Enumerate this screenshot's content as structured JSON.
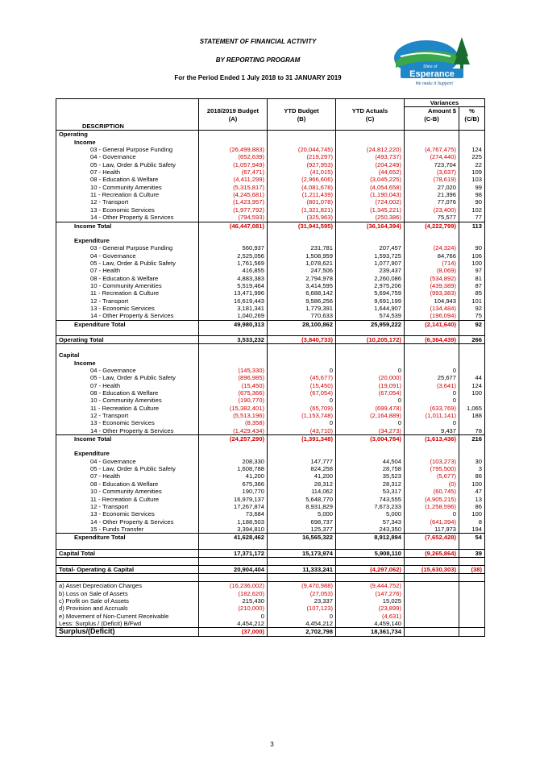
{
  "header": {
    "title": "STATEMENT OF FINANCIAL ACTIVITY",
    "subtitle": "BY REPORTING PROGRAM",
    "period": "For the Period Ended 1 July 2018 to 31 JANUARY 2019"
  },
  "logo": {
    "icon": "esperance-shire-logo",
    "small_text": "Shire of",
    "name": "Esperance",
    "tagline": "We make it happen!"
  },
  "columns": {
    "variances": "Variances",
    "description": "DESCRIPTION",
    "budget": "2018/2019 Budget",
    "budget_sub": "(A)",
    "ytd_budget": "YTD Budget",
    "ytd_budget_sub": "(B)",
    "ytd_actuals": "YTD Actuals",
    "ytd_actuals_sub": "(C)",
    "amount": "Amount $",
    "amount_sub": "(C-B)",
    "pct": "%",
    "pct_sub": "(C/B)"
  },
  "rows": [
    {
      "label": "Operating",
      "style": "section",
      "vals": [
        "",
        "",
        "",
        "",
        ""
      ]
    },
    {
      "label": "Income",
      "style": "group",
      "vals": [
        "",
        "",
        "",
        "",
        ""
      ]
    },
    {
      "label": "03 - General Purpose Funding",
      "style": "item",
      "vals": [
        "(26,499,883)",
        "(20,044,745)",
        "(24,812,220)",
        "(4,767,475)",
        "124"
      ]
    },
    {
      "label": "04 - Governance",
      "style": "item",
      "vals": [
        "(652,639)",
        "(219,297)",
        "(493,737)",
        "(274,440)",
        "225"
      ]
    },
    {
      "label": "05 - Law, Order & Public Safety",
      "style": "item",
      "vals": [
        "(1,057,949)",
        "(927,953)",
        "(204,249)",
        "723,704",
        "22"
      ]
    },
    {
      "label": "07 - Health",
      "style": "item",
      "vals": [
        "(67,471)",
        "(41,015)",
        "(44,652)",
        "(3,637)",
        "109"
      ]
    },
    {
      "label": "08 - Education & Welfare",
      "style": "item",
      "vals": [
        "(4,411,299)",
        "(2,966,606)",
        "(3,045,225)",
        "(78,619)",
        "103"
      ]
    },
    {
      "label": "10 - Community Amenities",
      "style": "item",
      "vals": [
        "(5,315,817)",
        "(4,081,678)",
        "(4,054,658)",
        "27,020",
        "99"
      ]
    },
    {
      "label": "11 - Recreation & Culture",
      "style": "item",
      "vals": [
        "(4,245,681)",
        "(1,211,439)",
        "(1,190,043)",
        "21,396",
        "98"
      ]
    },
    {
      "label": "12 - Transport",
      "style": "item",
      "vals": [
        "(1,423,957)",
        "(801,078)",
        "(724,002)",
        "77,076",
        "90"
      ]
    },
    {
      "label": "13 - Economic Services",
      "style": "item",
      "vals": [
        "(1,977,792)",
        "(1,321,821)",
        "(1,345,221)",
        "(23,400)",
        "102"
      ]
    },
    {
      "label": "14 - Other Property & Services",
      "style": "item",
      "vals": [
        "(794,593)",
        "(325,963)",
        "(250,386)",
        "75,577",
        "77"
      ]
    },
    {
      "label": "Income Total",
      "style": "total",
      "vals": [
        "(46,447,081)",
        "(31,941,595)",
        "(36,164,394)",
        "(4,222,799)",
        "113"
      ]
    },
    {
      "label": "",
      "style": "blank",
      "vals": [
        "",
        "",
        "",
        "",
        ""
      ]
    },
    {
      "label": "Expenditure",
      "style": "group",
      "vals": [
        "",
        "",
        "",
        "",
        ""
      ]
    },
    {
      "label": "03 - General Purpose Funding",
      "style": "item",
      "vals": [
        "560,937",
        "231,781",
        "207,457",
        "(24,324)",
        "90"
      ]
    },
    {
      "label": "04 - Governance",
      "style": "item",
      "vals": [
        "2,525,056",
        "1,508,959",
        "1,593,725",
        "84,766",
        "106"
      ]
    },
    {
      "label": "05 - Law, Order & Public Safety",
      "style": "item",
      "vals": [
        "1,761,569",
        "1,078,621",
        "1,077,907",
        "(714)",
        "100"
      ]
    },
    {
      "label": "07 - Health",
      "style": "item",
      "vals": [
        "416,855",
        "247,506",
        "239,437",
        "(8,069)",
        "97"
      ]
    },
    {
      "label": "08 - Education & Welfare",
      "style": "item",
      "vals": [
        "4,883,383",
        "2,794,978",
        "2,260,086",
        "(534,892)",
        "81"
      ]
    },
    {
      "label": "10 - Community Amenities",
      "style": "item",
      "vals": [
        "5,519,464",
        "3,414,595",
        "2,975,206",
        "(439,389)",
        "87"
      ]
    },
    {
      "label": "11 - Recreation & Culture",
      "style": "item",
      "vals": [
        "13,471,996",
        "6,688,142",
        "5,694,759",
        "(993,383)",
        "85"
      ]
    },
    {
      "label": "12 - Transport",
      "style": "item",
      "vals": [
        "16,619,443",
        "9,586,256",
        "9,691,199",
        "104,943",
        "101"
      ]
    },
    {
      "label": "13 - Economic Services",
      "style": "item",
      "vals": [
        "3,181,341",
        "1,779,391",
        "1,644,907",
        "(134,484)",
        "92"
      ]
    },
    {
      "label": "14 - Other Property & Services",
      "style": "item",
      "vals": [
        "1,040,269",
        "770,633",
        "574,539",
        "(196,094)",
        "75"
      ]
    },
    {
      "label": "Expenditure Total",
      "style": "total",
      "vals": [
        "49,980,313",
        "28,100,862",
        "25,959,222",
        "(2,141,640)",
        "92"
      ]
    },
    {
      "label": "",
      "style": "blank",
      "vals": [
        "",
        "",
        "",
        "",
        ""
      ]
    },
    {
      "label": "Operating Total",
      "style": "grand",
      "vals": [
        "3,533,232",
        "(3,840,733)",
        "(10,205,172)",
        "(6,364,439)",
        "266"
      ]
    },
    {
      "label": "",
      "style": "blank",
      "vals": [
        "",
        "",
        "",
        "",
        ""
      ]
    },
    {
      "label": "Capital",
      "style": "section",
      "vals": [
        "",
        "",
        "",
        "",
        ""
      ]
    },
    {
      "label": "Income",
      "style": "group",
      "vals": [
        "",
        "",
        "",
        "",
        ""
      ]
    },
    {
      "label": "04 - Governance",
      "style": "item",
      "vals": [
        "(145,330)",
        "0",
        "0",
        "0",
        ""
      ]
    },
    {
      "label": "05 - Law, Order & Public Safety",
      "style": "item",
      "vals": [
        "(896,985)",
        "(45,677)",
        "(20,000)",
        "25,677",
        "44"
      ]
    },
    {
      "label": "07 - Health",
      "style": "item",
      "vals": [
        "(15,450)",
        "(15,450)",
        "(19,091)",
        "(3,641)",
        "124"
      ]
    },
    {
      "label": "08 - Education & Welfare",
      "style": "item",
      "vals": [
        "(675,366)",
        "(67,054)",
        "(67,054)",
        "0",
        "100"
      ]
    },
    {
      "label": "10 - Community Amenities",
      "style": "item",
      "vals": [
        "(190,770)",
        "0",
        "0",
        "0",
        ""
      ]
    },
    {
      "label": "11 - Recreation & Culture",
      "style": "item",
      "vals": [
        "(15,382,401)",
        "(65,709)",
        "(699,478)",
        "(633,769)",
        "1,065"
      ]
    },
    {
      "label": "12 - Transport",
      "style": "item",
      "vals": [
        "(5,513,196)",
        "(1,153,748)",
        "(2,164,889)",
        "(1,011,141)",
        "188"
      ]
    },
    {
      "label": "13 - Economic Services",
      "style": "item",
      "vals": [
        "(8,358)",
        "0",
        "0",
        "0",
        ""
      ]
    },
    {
      "label": "14 - Other Property & Services",
      "style": "item",
      "vals": [
        "(1,429,434)",
        "(43,710)",
        "(34,273)",
        "9,437",
        "78"
      ]
    },
    {
      "label": "Income Total",
      "style": "total",
      "vals": [
        "(24,257,290)",
        "(1,391,348)",
        "(3,004,784)",
        "(1,613,436)",
        "216"
      ]
    },
    {
      "label": "",
      "style": "blank",
      "vals": [
        "",
        "",
        "",
        "",
        ""
      ]
    },
    {
      "label": "Expenditure",
      "style": "group",
      "vals": [
        "",
        "",
        "",
        "",
        ""
      ]
    },
    {
      "label": "04 - Governance",
      "style": "item",
      "vals": [
        "208,330",
        "147,777",
        "44,504",
        "(103,273)",
        "30"
      ]
    },
    {
      "label": "05 - Law, Order & Public Safety",
      "style": "item",
      "vals": [
        "1,608,788",
        "824,258",
        "28,758",
        "(795,500)",
        "3"
      ]
    },
    {
      "label": "07 - Health",
      "style": "item",
      "vals": [
        "41,200",
        "41,200",
        "35,523",
        "(5,677)",
        "86"
      ]
    },
    {
      "label": "08 - Education & Welfare",
      "style": "item",
      "vals": [
        "675,366",
        "28,312",
        "28,312",
        "(0)",
        "100"
      ]
    },
    {
      "label": "10 - Community Amenities",
      "style": "item",
      "vals": [
        "190,770",
        "114,062",
        "53,317",
        "(60,745)",
        "47"
      ]
    },
    {
      "label": "11 - Recreation & Culture",
      "style": "item",
      "vals": [
        "16,979,137",
        "5,648,770",
        "743,555",
        "(4,905,215)",
        "13"
      ]
    },
    {
      "label": "12 - Transport",
      "style": "item",
      "vals": [
        "17,267,874",
        "8,931,829",
        "7,673,233",
        "(1,258,596)",
        "86"
      ]
    },
    {
      "label": "13 - Economic Services",
      "style": "item",
      "vals": [
        "73,684",
        "5,000",
        "5,000",
        "0",
        "100"
      ]
    },
    {
      "label": "14 - Other Property & Services",
      "style": "item",
      "vals": [
        "1,188,503",
        "698,737",
        "57,343",
        "(641,394)",
        "8"
      ]
    },
    {
      "label": "15 - Funds Transfer",
      "style": "item",
      "vals": [
        "3,394,810",
        "125,377",
        "243,350",
        "117,973",
        "194"
      ]
    },
    {
      "label": "Expenditure Total",
      "style": "total",
      "vals": [
        "41,628,462",
        "16,565,322",
        "8,912,894",
        "(7,652,428)",
        "54"
      ]
    },
    {
      "label": "",
      "style": "blank",
      "vals": [
        "",
        "",
        "",
        "",
        ""
      ]
    },
    {
      "label": "Capital Total",
      "style": "grand",
      "vals": [
        "17,371,172",
        "15,173,974",
        "5,908,110",
        "(9,265,864)",
        "39"
      ]
    },
    {
      "label": "",
      "style": "blank",
      "vals": [
        "",
        "",
        "",
        "",
        ""
      ]
    },
    {
      "label": "Total- Operating & Capital",
      "style": "grand",
      "vals": [
        "20,904,404",
        "11,333,241",
        "(4,297,062)",
        "(15,630,303)",
        "(38)"
      ]
    },
    {
      "label": "",
      "style": "blank",
      "vals": [
        "",
        "",
        "",
        "",
        ""
      ]
    },
    {
      "label": "a) Asset Depreciation Charges",
      "style": "adj-first",
      "vals": [
        "(16,236,002)",
        "(9,470,988)",
        "(9,444,752)",
        "",
        ""
      ]
    },
    {
      "label": "b) Loss on Sale of Assets",
      "style": "adj",
      "vals": [
        "(182,620)",
        "(27,053)",
        "(147,276)",
        "",
        ""
      ]
    },
    {
      "label": "c) Profit on Sale of Assets",
      "style": "adj",
      "vals": [
        "215,430",
        "23,337",
        "15,025",
        "",
        ""
      ]
    },
    {
      "label": "d) Provision and Accruals",
      "style": "adj",
      "vals": [
        "(210,000)",
        "(107,123)",
        "(23,899)",
        "",
        ""
      ]
    },
    {
      "label": "e) Movement of Non-Current Receivable",
      "style": "adj",
      "vals": [
        "0",
        "0",
        "(4,631)",
        "",
        ""
      ]
    },
    {
      "label": "Less: Surplus / (Deficit) B/Fwd",
      "style": "adj",
      "vals": [
        "4,454,212",
        "4,454,212",
        "4,459,140",
        "",
        ""
      ]
    },
    {
      "label": "Surplus/(Deficit)",
      "style": "final",
      "vals": [
        "(37,000)",
        "2,702,798",
        "18,361,734",
        "",
        ""
      ]
    }
  ],
  "page_number": "3"
}
